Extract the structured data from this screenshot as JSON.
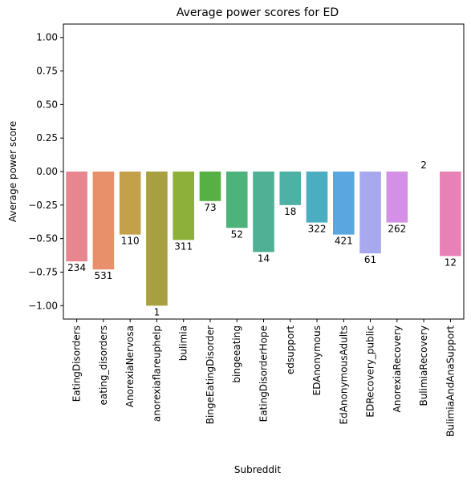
{
  "chart_data": {
    "type": "bar",
    "title": "Average power scores for ED",
    "xlabel": "Subreddit",
    "ylabel": "Average power score",
    "ylim": [
      -1.1,
      1.1
    ],
    "yticks": [
      -1.0,
      -0.75,
      -0.5,
      -0.25,
      0.0,
      0.25,
      0.5,
      0.75,
      1.0
    ],
    "ytick_labels": [
      "−1.00",
      "−0.75",
      "−0.50",
      "−0.25",
      "0.00",
      "0.25",
      "0.50",
      "0.75",
      "1.00"
    ],
    "grid": false,
    "categories": [
      "EatingDisorders",
      "eating_disorders",
      "AnorexiaNervosa",
      "anorexiaflareuphelp",
      "bulimia",
      "BingeEatingDisorder",
      "bingeeating",
      "EatingDisorderHope",
      "edsupport",
      "EDAnonymous",
      "EdAnonymousAdults",
      "EDRecovery_public",
      "AnorexiaRecovery",
      "BulimiaRecovery",
      "BulimiaAndAnaSupport"
    ],
    "values": [
      -0.67,
      -0.73,
      -0.47,
      -1.0,
      -0.51,
      -0.22,
      -0.42,
      -0.6,
      -0.25,
      -0.38,
      -0.47,
      -0.61,
      -0.38,
      0.0,
      -0.63
    ],
    "counts": [
      "234",
      "531",
      "110",
      "1",
      "311",
      "73",
      "52",
      "14",
      "18",
      "322",
      "421",
      "61",
      "262",
      "2",
      "12"
    ],
    "colors": [
      "#e8868f",
      "#e8906a",
      "#c5a04a",
      "#a8a040",
      "#8db03a",
      "#57b044",
      "#4db37a",
      "#50b096",
      "#4fb0a6",
      "#4badc0",
      "#5aa6e0",
      "#a8a8ee",
      "#d48fe6",
      "#e88fd0",
      "#e882b6"
    ]
  }
}
